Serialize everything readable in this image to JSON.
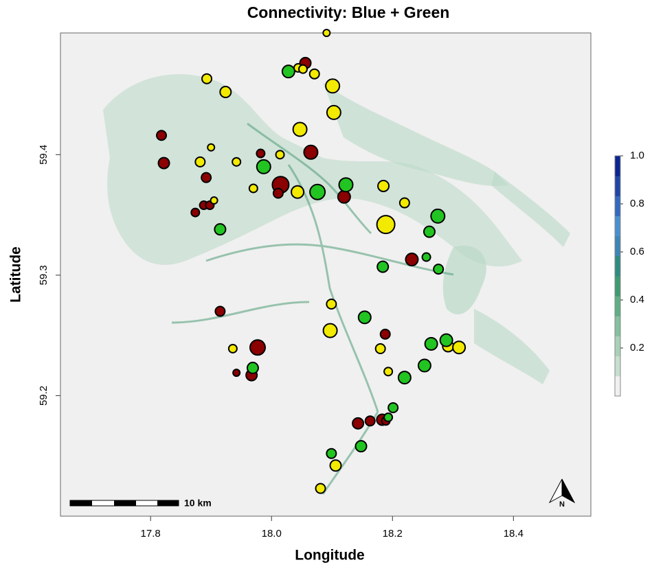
{
  "chart_data": {
    "type": "scatter",
    "title": "Connectivity: Blue + Green",
    "xlabel": "Longitude",
    "ylabel": "Latitude",
    "xlim": [
      17.651,
      18.528
    ],
    "ylim": [
      59.1,
      59.501
    ],
    "xticks": [
      17.8,
      {
        "value": 18,
        "label": "18.0"
      },
      18.2,
      18.4
    ],
    "yticks": [
      59.2,
      59.3,
      59.4
    ],
    "series": [
      {
        "color": "#8b0000",
        "x": [
          18.056,
          17.818,
          17.822,
          17.982,
          18.065,
          18.015,
          18.011,
          17.892,
          17.888,
          17.898,
          17.874,
          18.12,
          18.232,
          17.915,
          17.977,
          17.942,
          17.967,
          18.188,
          18.143,
          18.163,
          18.183,
          18.189
        ],
        "y": [
          59.476,
          59.416,
          59.393,
          59.401,
          59.402,
          59.375,
          59.368,
          59.381,
          59.358,
          59.358,
          59.352,
          59.365,
          59.313,
          59.27,
          59.24,
          59.219,
          59.217,
          59.251,
          59.177,
          59.179,
          59.18,
          59.179
        ],
        "sizes": [
          8,
          7,
          8,
          6,
          10,
          12,
          7,
          7,
          6,
          6,
          6,
          9,
          9,
          7,
          11,
          5,
          8,
          7,
          8,
          7,
          8,
          6
        ]
      },
      {
        "color": "#f2ea00",
        "x": [
          18.091,
          17.893,
          17.924,
          18.044,
          18.052,
          18.071,
          18.101,
          18.103,
          18.047,
          17.9,
          18.014,
          17.882,
          17.942,
          17.97,
          18.043,
          18.185,
          18.22,
          17.905,
          18.189,
          18.099,
          18.097,
          17.936,
          18.18,
          18.193,
          18.292,
          18.31,
          18.106,
          18.081
        ],
        "y": [
          59.501,
          59.463,
          59.452,
          59.472,
          59.471,
          59.467,
          59.457,
          59.435,
          59.421,
          59.406,
          59.4,
          59.394,
          59.394,
          59.372,
          59.369,
          59.374,
          59.36,
          59.362,
          59.342,
          59.276,
          59.254,
          59.239,
          59.239,
          59.22,
          59.241,
          59.24,
          59.142,
          59.123
        ],
        "sizes": [
          5,
          7,
          8,
          6,
          6,
          7,
          10,
          10,
          10,
          5,
          6,
          7,
          6,
          6,
          9,
          8,
          7,
          5,
          13,
          7,
          10,
          6,
          7,
          6,
          8,
          9,
          8,
          7
        ]
      },
      {
        "color": "#22c422",
        "x": [
          18.028,
          17.987,
          18.076,
          18.123,
          17.915,
          18.275,
          18.261,
          18.184,
          18.256,
          18.276,
          18.154,
          18.264,
          18.289,
          18.253,
          18.22,
          17.969,
          18.201,
          18.193,
          18.148,
          18.099
        ],
        "y": [
          59.469,
          59.39,
          59.369,
          59.375,
          59.338,
          59.349,
          59.336,
          59.307,
          59.315,
          59.305,
          59.265,
          59.243,
          59.246,
          59.225,
          59.215,
          59.223,
          59.19,
          59.182,
          59.158,
          59.152
        ],
        "sizes": [
          9,
          10,
          11,
          10,
          8,
          10,
          8,
          8,
          6,
          7,
          9,
          9,
          9,
          9,
          9,
          8,
          7,
          6,
          8,
          7
        ]
      }
    ],
    "colorbar": {
      "lim": [
        0,
        1
      ],
      "ticks": [
        0.2,
        0.4,
        0.6,
        0.8,
        {
          "value": 1,
          "label": "1.0"
        }
      ],
      "colors": [
        "#f0f0f0",
        "#c6dfd0",
        "#a9d0b9",
        "#86c09f",
        "#5fae84",
        "#3f9a72",
        "#2f8c7e",
        "#3d86b5",
        "#4a8fd0",
        "#3469bd",
        "#1f46a6",
        "#0b2590"
      ]
    },
    "scale_label": "10 km",
    "north_label": "N"
  }
}
